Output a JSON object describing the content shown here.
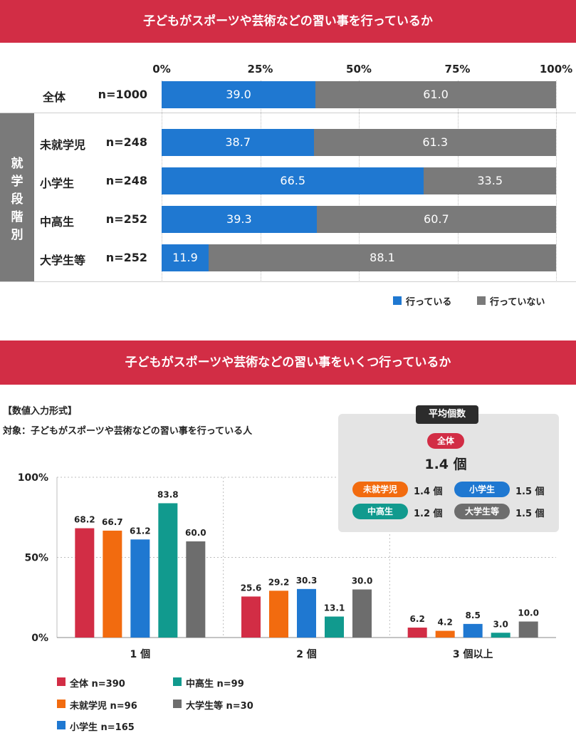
{
  "chart_data": [
    {
      "type": "bar",
      "orientation": "horizontal-stacked",
      "title": "子どもがスポーツや芸術などの習い事を行っているか",
      "x_ticks": [
        "0%",
        "25%",
        "50%",
        "75%",
        "100%"
      ],
      "xlim": [
        0,
        100
      ],
      "group_label": "就学段階別",
      "rows": [
        {
          "name": "全体",
          "n": "n=1000",
          "values": [
            39.0,
            61.0
          ],
          "labels": [
            "39.0",
            "61.0"
          ]
        },
        {
          "name": "未就学児",
          "n": "n=248",
          "values": [
            38.7,
            61.3
          ],
          "labels": [
            "38.7",
            "61.3"
          ]
        },
        {
          "name": "小学生",
          "n": "n=248",
          "values": [
            66.5,
            33.5
          ],
          "labels": [
            "66.5",
            "33.5"
          ]
        },
        {
          "name": "中高生",
          "n": "n=252",
          "values": [
            39.3,
            60.7
          ],
          "labels": [
            "39.3",
            "60.7"
          ]
        },
        {
          "name": "大学生等",
          "n": "n=252",
          "values": [
            11.9,
            88.1
          ],
          "labels": [
            "11.9",
            "88.1"
          ]
        }
      ],
      "series": [
        {
          "name": "行っている",
          "color": "#1f78d1"
        },
        {
          "name": "行っていない",
          "color": "#7a7a7a"
        }
      ],
      "legend": "bottom-right"
    },
    {
      "type": "bar",
      "title": "子どもがスポーツや芸術などの習い事をいくつ行っているか",
      "note1": "【数値入力形式】",
      "note2": "対象：子どもがスポーツや芸術などの習い事を行っている人",
      "y_ticks": [
        "100%",
        "50%",
        "0%"
      ],
      "ylim": [
        0,
        100
      ],
      "categories": [
        "1 個",
        "2 個",
        "3 個以上"
      ],
      "series": [
        {
          "name": "全体",
          "n": "n=390",
          "color": "#d22d45",
          "values": [
            68.2,
            25.6,
            6.2
          ],
          "labels": [
            "68.2",
            "25.6",
            "6.2"
          ]
        },
        {
          "name": "未就学児",
          "n": "n=96",
          "color": "#f26b0f",
          "values": [
            66.7,
            29.2,
            4.2
          ],
          "labels": [
            "66.7",
            "29.2",
            "4.2"
          ]
        },
        {
          "name": "小学生",
          "n": "n=165",
          "color": "#1f78d1",
          "values": [
            61.2,
            30.3,
            8.5
          ],
          "labels": [
            "61.2",
            "30.3",
            "8.5"
          ]
        },
        {
          "name": "中高生",
          "n": "n=99",
          "color": "#119a8e",
          "values": [
            83.8,
            13.1,
            3.0
          ],
          "labels": [
            "83.8",
            "13.1",
            "3.0"
          ]
        },
        {
          "name": "大学生等",
          "n": "n=30",
          "color": "#6d6d6d",
          "values": [
            60.0,
            30.0,
            10.0
          ],
          "labels": [
            "60.0",
            "30.0",
            "10.0"
          ]
        }
      ],
      "legend": "bottom-left",
      "average_box": {
        "title": "平均個数",
        "overall_label": "全体",
        "overall_value": "1.4 個",
        "items": [
          {
            "label": "未就学児",
            "value": "1.4 個",
            "color": "#f26b0f"
          },
          {
            "label": "小学生",
            "value": "1.5 個",
            "color": "#1f78d1"
          },
          {
            "label": "中高生",
            "value": "1.2 個",
            "color": "#119a8e"
          },
          {
            "label": "大学生等",
            "value": "1.5 個",
            "color": "#6d6d6d"
          }
        ]
      }
    }
  ]
}
